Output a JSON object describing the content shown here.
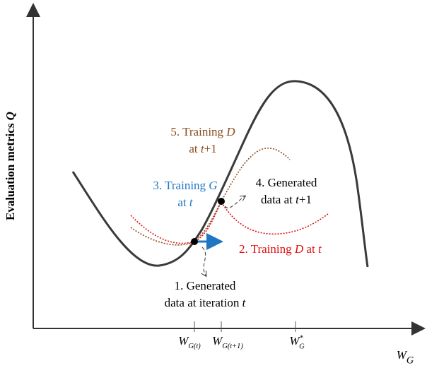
{
  "y_axis_label": [
    "Evaluation metrics ",
    "Q"
  ],
  "x_axis_label": {
    "symbol": "W",
    "subscript": "G"
  },
  "ticks": [
    {
      "symbol": "W",
      "subscript": "G(t)"
    },
    {
      "symbol": "W",
      "subscript": "G(t+1)"
    },
    {
      "symbol": "W",
      "subscript": "G",
      "superscript": "*"
    }
  ],
  "annotations": [
    {
      "lines": [
        [
          "1. Generated"
        ],
        [
          "data at iteration ",
          "t"
        ]
      ]
    },
    {
      "lines": [
        [
          "2. Training ",
          "D",
          " at ",
          "t"
        ]
      ]
    },
    {
      "lines": [
        [
          "3. Training ",
          "G"
        ],
        [
          "at ",
          "t"
        ]
      ]
    },
    {
      "lines": [
        [
          "4. Generated"
        ],
        [
          "data at ",
          "t",
          "+1"
        ]
      ]
    },
    {
      "lines": [
        [
          "5. Training ",
          "D"
        ],
        [
          "at ",
          "t",
          "+1"
        ]
      ]
    }
  ]
}
